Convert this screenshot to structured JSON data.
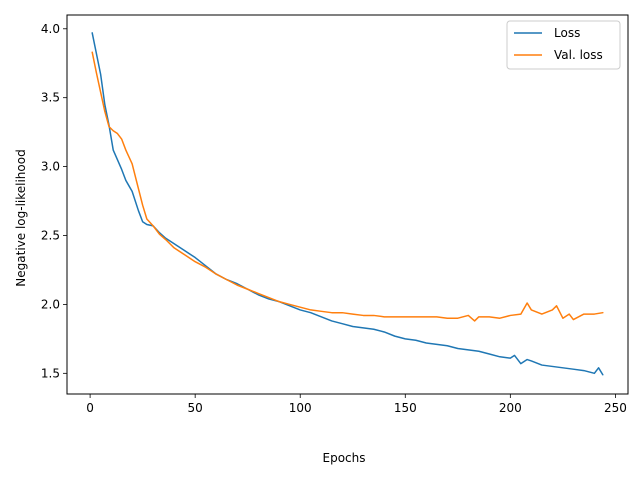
{
  "chart_data": {
    "type": "line",
    "xlabel": "Epochs",
    "ylabel": "Negative log-likelihood",
    "xlim": [
      -11,
      256
    ],
    "ylim": [
      1.35,
      4.1
    ],
    "xticks": [
      0,
      50,
      100,
      150,
      200,
      250
    ],
    "yticks": [
      1.5,
      2.0,
      2.5,
      3.0,
      3.5,
      4.0
    ],
    "ytick_labels": [
      "1.5",
      "2.0",
      "2.5",
      "3.0",
      "3.5",
      "4.0"
    ],
    "grid": false,
    "legend_position": "top-right",
    "series": [
      {
        "name": "Loss",
        "color": "#1f77b4",
        "x": [
          1,
          3,
          5,
          7,
          9,
          11,
          13,
          15,
          17,
          20,
          23,
          25,
          27,
          30,
          33,
          36,
          40,
          45,
          50,
          55,
          60,
          65,
          70,
          75,
          80,
          85,
          90,
          95,
          100,
          105,
          110,
          115,
          120,
          125,
          130,
          135,
          140,
          145,
          150,
          155,
          160,
          165,
          170,
          175,
          180,
          185,
          190,
          195,
          200,
          202,
          205,
          208,
          210,
          215,
          220,
          225,
          230,
          235,
          240,
          242,
          244
        ],
        "values": [
          3.97,
          3.82,
          3.67,
          3.45,
          3.3,
          3.12,
          3.05,
          2.98,
          2.9,
          2.82,
          2.68,
          2.6,
          2.58,
          2.57,
          2.52,
          2.48,
          2.44,
          2.39,
          2.34,
          2.28,
          2.22,
          2.18,
          2.15,
          2.11,
          2.07,
          2.04,
          2.02,
          1.99,
          1.96,
          1.94,
          1.91,
          1.88,
          1.86,
          1.84,
          1.83,
          1.82,
          1.8,
          1.77,
          1.75,
          1.74,
          1.72,
          1.71,
          1.7,
          1.68,
          1.67,
          1.66,
          1.64,
          1.62,
          1.61,
          1.63,
          1.57,
          1.6,
          1.59,
          1.56,
          1.55,
          1.54,
          1.53,
          1.52,
          1.5,
          1.54,
          1.49
        ]
      },
      {
        "name": "Val. loss",
        "color": "#ff7f0e",
        "x": [
          1,
          3,
          5,
          7,
          9,
          11,
          13,
          15,
          17,
          20,
          23,
          25,
          27,
          30,
          33,
          36,
          40,
          45,
          50,
          55,
          60,
          65,
          70,
          75,
          80,
          85,
          90,
          95,
          100,
          105,
          110,
          115,
          120,
          125,
          130,
          135,
          140,
          145,
          150,
          155,
          160,
          165,
          170,
          175,
          180,
          183,
          185,
          190,
          195,
          200,
          205,
          208,
          210,
          215,
          220,
          222,
          225,
          228,
          230,
          235,
          240,
          244
        ],
        "values": [
          3.83,
          3.68,
          3.54,
          3.4,
          3.29,
          3.26,
          3.24,
          3.2,
          3.12,
          3.02,
          2.84,
          2.72,
          2.62,
          2.57,
          2.51,
          2.47,
          2.41,
          2.36,
          2.31,
          2.27,
          2.22,
          2.18,
          2.14,
          2.11,
          2.08,
          2.05,
          2.02,
          2.0,
          1.98,
          1.96,
          1.95,
          1.94,
          1.94,
          1.93,
          1.92,
          1.92,
          1.91,
          1.91,
          1.91,
          1.91,
          1.91,
          1.91,
          1.9,
          1.9,
          1.92,
          1.88,
          1.91,
          1.91,
          1.9,
          1.92,
          1.93,
          2.01,
          1.96,
          1.93,
          1.96,
          1.99,
          1.9,
          1.93,
          1.89,
          1.93,
          1.93,
          1.94
        ]
      }
    ]
  }
}
